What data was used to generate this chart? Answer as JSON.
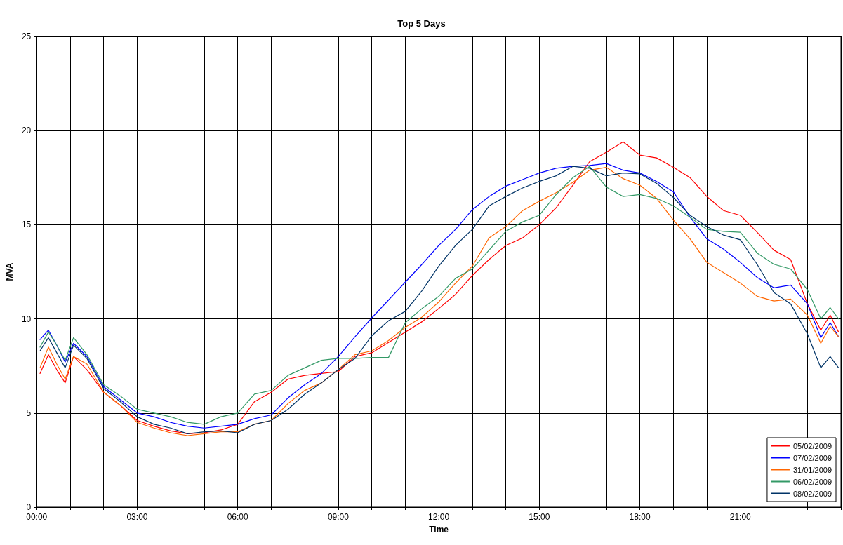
{
  "chart_data": {
    "type": "line",
    "title": "Top 5 Days",
    "xlabel": "Time",
    "ylabel": "MVA",
    "x": [
      0.1,
      0.35,
      0.6,
      0.85,
      1.1,
      1.5,
      2,
      2.5,
      3,
      3.5,
      4,
      4.5,
      5,
      5.5,
      6,
      6.5,
      7,
      7.5,
      8,
      8.5,
      9,
      9.5,
      10,
      10.5,
      11,
      11.5,
      12,
      12.5,
      13,
      13.5,
      14,
      14.5,
      15,
      15.5,
      16,
      16.5,
      17,
      17.5,
      18,
      18.5,
      19,
      19.5,
      20,
      20.5,
      21,
      21.5,
      22,
      22.5,
      23,
      23.4,
      23.68,
      23.93
    ],
    "series": [
      {
        "name": "05/02/2009",
        "color": "#ff0000",
        "values": [
          7.1,
          8.1,
          7.3,
          6.6,
          8.0,
          7.3,
          6.1,
          5.4,
          4.6,
          4.3,
          4.05,
          3.9,
          3.95,
          4.1,
          4.4,
          5.6,
          6.1,
          6.8,
          7.0,
          7.1,
          7.2,
          8.0,
          8.2,
          8.75,
          9.3,
          9.85,
          10.55,
          11.3,
          12.3,
          13.15,
          13.9,
          14.3,
          15.0,
          15.9,
          17.1,
          18.35,
          18.85,
          19.4,
          18.7,
          18.55,
          18.05,
          17.5,
          16.5,
          15.75,
          15.5,
          14.6,
          13.65,
          13.15,
          10.8,
          9.4,
          10.2,
          9.3
        ]
      },
      {
        "name": "07/02/2009",
        "color": "#0000ff",
        "values": [
          8.9,
          9.4,
          8.6,
          7.7,
          8.7,
          8.0,
          6.4,
          5.7,
          5.0,
          4.8,
          4.5,
          4.3,
          4.2,
          4.3,
          4.4,
          4.7,
          4.9,
          5.8,
          6.5,
          7.1,
          8.0,
          9.05,
          10.05,
          11.0,
          11.95,
          12.9,
          13.9,
          14.75,
          15.8,
          16.5,
          17.05,
          17.4,
          17.75,
          18.0,
          18.1,
          18.15,
          18.25,
          17.9,
          17.75,
          17.3,
          16.75,
          15.4,
          14.25,
          13.7,
          13.0,
          12.2,
          11.65,
          11.8,
          10.8,
          9.0,
          9.8,
          9.05
        ]
      },
      {
        "name": "31/01/2009",
        "color": "#ff6600",
        "values": [
          7.4,
          8.5,
          7.6,
          6.8,
          8.0,
          7.6,
          6.1,
          5.4,
          4.5,
          4.2,
          3.95,
          3.8,
          3.9,
          4.0,
          4.0,
          4.4,
          4.6,
          5.5,
          6.2,
          6.6,
          7.3,
          8.1,
          8.3,
          8.85,
          9.55,
          10.1,
          10.9,
          11.9,
          12.8,
          14.3,
          14.9,
          15.75,
          16.25,
          16.7,
          17.25,
          17.9,
          18.05,
          17.45,
          17.1,
          16.4,
          15.25,
          14.25,
          13.0,
          12.45,
          11.9,
          11.2,
          10.95,
          11.05,
          10.2,
          8.7,
          9.6,
          9.05
        ]
      },
      {
        "name": "06/02/2009",
        "color": "#339966",
        "values": [
          8.5,
          9.3,
          8.6,
          7.8,
          9.0,
          8.1,
          6.5,
          5.9,
          5.2,
          5.0,
          4.8,
          4.5,
          4.4,
          4.8,
          5.0,
          6.0,
          6.2,
          7.0,
          7.4,
          7.8,
          7.9,
          7.9,
          7.95,
          7.95,
          9.8,
          10.55,
          11.2,
          12.15,
          12.65,
          13.65,
          14.65,
          15.15,
          15.5,
          16.6,
          17.5,
          18.1,
          17.0,
          16.5,
          16.6,
          16.4,
          16.0,
          15.4,
          14.75,
          14.65,
          14.6,
          13.5,
          12.9,
          12.65,
          11.55,
          10.0,
          10.6,
          10.0
        ]
      },
      {
        "name": "08/02/2009",
        "color": "#003366",
        "values": [
          8.3,
          9.0,
          8.2,
          7.4,
          8.6,
          7.9,
          6.3,
          5.6,
          4.8,
          4.4,
          4.2,
          3.9,
          4.0,
          4.05,
          3.95,
          4.4,
          4.6,
          5.2,
          6.0,
          6.6,
          7.3,
          7.9,
          9.1,
          9.9,
          10.4,
          11.5,
          12.8,
          13.9,
          14.75,
          16.0,
          16.5,
          16.95,
          17.3,
          17.6,
          18.1,
          18.0,
          17.6,
          17.75,
          17.7,
          17.2,
          16.45,
          15.5,
          14.9,
          14.45,
          14.2,
          12.9,
          11.4,
          10.8,
          9.2,
          7.4,
          8.0,
          7.4
        ]
      }
    ],
    "xlim": [
      0,
      24
    ],
    "xticks": [
      {
        "value": 0,
        "label": "00:00"
      },
      {
        "value": 1,
        "label": null
      },
      {
        "value": 2,
        "label": null
      },
      {
        "value": 3,
        "label": "03:00"
      },
      {
        "value": 4,
        "label": null
      },
      {
        "value": 5,
        "label": null
      },
      {
        "value": 6,
        "label": "06:00"
      },
      {
        "value": 7,
        "label": null
      },
      {
        "value": 8,
        "label": null
      },
      {
        "value": 9,
        "label": "09:00"
      },
      {
        "value": 10,
        "label": null
      },
      {
        "value": 11,
        "label": null
      },
      {
        "value": 12,
        "label": "12:00"
      },
      {
        "value": 13,
        "label": null
      },
      {
        "value": 14,
        "label": null
      },
      {
        "value": 15,
        "label": "15:00"
      },
      {
        "value": 16,
        "label": null
      },
      {
        "value": 17,
        "label": null
      },
      {
        "value": 18,
        "label": "18:00"
      },
      {
        "value": 19,
        "label": null
      },
      {
        "value": 20,
        "label": null
      },
      {
        "value": 21,
        "label": "21:00"
      },
      {
        "value": 22,
        "label": null
      },
      {
        "value": 23,
        "label": null
      },
      {
        "value": 24,
        "label": null
      }
    ],
    "ylim": [
      0,
      25
    ],
    "yticks": [
      0,
      5,
      10,
      15,
      20,
      25
    ],
    "grid": true,
    "legend": "bottom right",
    "marker": "none",
    "line_style": "solid"
  }
}
